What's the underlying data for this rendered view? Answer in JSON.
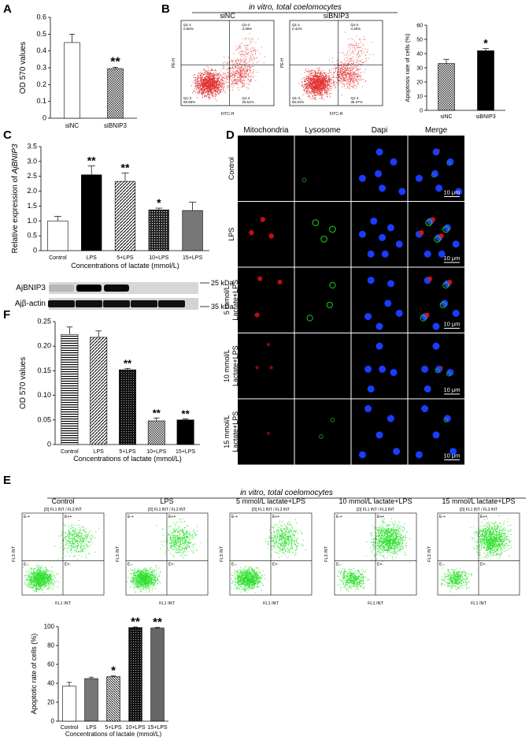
{
  "panels": {
    "A": {
      "label": "A",
      "chart_data": {
        "type": "bar",
        "categories": [
          "siNC",
          "siBNIP3"
        ],
        "values": [
          0.45,
          0.295
        ],
        "errors": [
          0.05,
          0.008
        ],
        "significance": [
          "",
          "**"
        ],
        "ylabel": "OD 570 values",
        "ylim": [
          0,
          0.6
        ],
        "yticks": [
          "0",
          "0.1",
          "0.2",
          "0.3",
          "0.4",
          "0.5",
          "0.6"
        ]
      }
    },
    "B": {
      "label": "B",
      "header": "in vitro, total coelomocytes",
      "flow": [
        {
          "title": "siNC",
          "q11": "Q1-1",
          "q11v": "0.56%",
          "q12": "Q1-2",
          "q12v": "3.38%",
          "q13": "Q1-3",
          "q13v": "69.55%",
          "q14": "Q1-4",
          "q14v": "26.51%",
          "xlabel": "FITC-H",
          "ylabel": "PE-H"
        },
        {
          "title": "siBNIP3",
          "q11": "Q1-1",
          "q11v": "0.42%",
          "q12": "Q1-2",
          "q12v": "4.30%",
          "q13": "Q1-3",
          "q13v": "56.91%",
          "q14": "Q1-4",
          "q14v": "38.37%",
          "xlabel": "FITC-H",
          "ylabel": "PE-H"
        }
      ],
      "chart_data": {
        "type": "bar",
        "categories": [
          "siNC",
          "siBNIP3"
        ],
        "values": [
          33,
          42
        ],
        "errors": [
          3,
          1.5
        ],
        "significance": [
          "",
          "*"
        ],
        "ylabel": "Apoptosis rate of cells (%)",
        "ylim": [
          0,
          60
        ],
        "yticks": [
          "0",
          "10",
          "20",
          "30",
          "40",
          "50",
          "60"
        ]
      }
    },
    "C": {
      "label": "C",
      "chart_data": {
        "type": "bar",
        "categories": [
          "Control",
          "LPS",
          "5+LPS",
          "10+LPS",
          "15+LPS"
        ],
        "values": [
          1.0,
          2.55,
          2.33,
          1.37,
          1.35
        ],
        "errors": [
          0.15,
          0.3,
          0.28,
          0.06,
          0.28
        ],
        "significance": [
          "",
          "**",
          "**",
          "*",
          ""
        ],
        "ylabel": "Relative expression of AjBNIP3",
        "xlabel": "Concentrations of lactate (mmol/L)",
        "ylim": [
          0,
          3.5
        ],
        "yticks": [
          "0",
          "0.5",
          "1.0",
          "1.5",
          "2.0",
          "2.5",
          "3.0",
          "3.5"
        ]
      },
      "blot": {
        "row1": "AjBNIP3",
        "row2": "Ajβ-actin",
        "kda1": "25 kDa",
        "kda2": "35 kDa"
      }
    },
    "D": {
      "label": "D",
      "columns": [
        "Mitochondria",
        "Lysosome",
        "Dapi",
        "Merge"
      ],
      "rows": [
        "Control",
        "LPS",
        "5 mmol/L Lactate+LPS",
        "10 mmol/L Lactate+LPS",
        "15 mmol/L Lactate+LPS"
      ],
      "row_lines": [
        [
          "Control"
        ],
        [
          "LPS"
        ],
        [
          "5 mmol/L",
          "Lactate+LPS"
        ],
        [
          "10 mmol/L",
          "Lactate+LPS"
        ],
        [
          "15 mmol/L",
          "Lactate+LPS"
        ]
      ],
      "scale": "10 μm"
    },
    "F": {
      "label": "F",
      "chart_data": {
        "type": "bar",
        "categories": [
          "Control",
          "LPS",
          "5+LPS",
          "10+LPS",
          "15+LPS"
        ],
        "values": [
          0.224,
          0.218,
          0.152,
          0.048,
          0.05
        ],
        "errors": [
          0.015,
          0.013,
          0.003,
          0.006,
          0.002
        ],
        "significance": [
          "",
          "",
          "**",
          "**",
          "**"
        ],
        "ylabel": "OD 570 values",
        "xlabel": "Concentrations of lactate (mmol/L)",
        "ylim": [
          0,
          0.25
        ],
        "yticks": [
          "0",
          "0.05",
          "0.10",
          "0.15",
          "0.20",
          "0.25"
        ]
      }
    },
    "E": {
      "label": "E",
      "header": "in vitro, total coelomocytes",
      "flow": [
        {
          "title": "Control",
          "sub": "[D] FL1 INT / FL3 INT",
          "xlabel": "FL1 INT",
          "ylabel": "FL3 INT"
        },
        {
          "title": "LPS",
          "sub": "[D] FL1 INT / FL3 INT",
          "xlabel": "FL1 INT",
          "ylabel": "FL3 INT"
        },
        {
          "title": "5 mmol/L lactate+LPS",
          "sub": "[D] FL1 INT / FL3 INT",
          "xlabel": "FL1 INT",
          "ylabel": "FL3 INT"
        },
        {
          "title": "10 mmol/L lactate+LPS",
          "sub": "[D] FL1 INT / FL3 INT",
          "xlabel": "FL1 INT",
          "ylabel": "FL3 INT"
        },
        {
          "title": "15 mmol/L lactate+LPS",
          "sub": "[D] FL1 INT / FL3 INT",
          "xlabel": "FL1 INT",
          "ylabel": "FL3 INT"
        }
      ],
      "quad": [
        "E-+",
        "E++",
        "E--",
        "E+-"
      ],
      "chart_data": {
        "type": "bar",
        "categories": [
          "Control",
          "LPS",
          "5+LPS",
          "10+LPS",
          "15+LPS"
        ],
        "values": [
          37,
          45,
          47,
          99,
          98.5
        ],
        "errors": [
          4,
          1.5,
          0.8,
          0.6,
          0.6
        ],
        "significance": [
          "",
          "",
          "*",
          "**",
          "**"
        ],
        "ylabel": "Apoptotic rate of cells (%)",
        "xlabel": "Concentrations of lactate (mmol/L)",
        "ylim": [
          0,
          100
        ],
        "yticks": [
          "0",
          "20",
          "40",
          "60",
          "80",
          "100"
        ]
      }
    }
  }
}
